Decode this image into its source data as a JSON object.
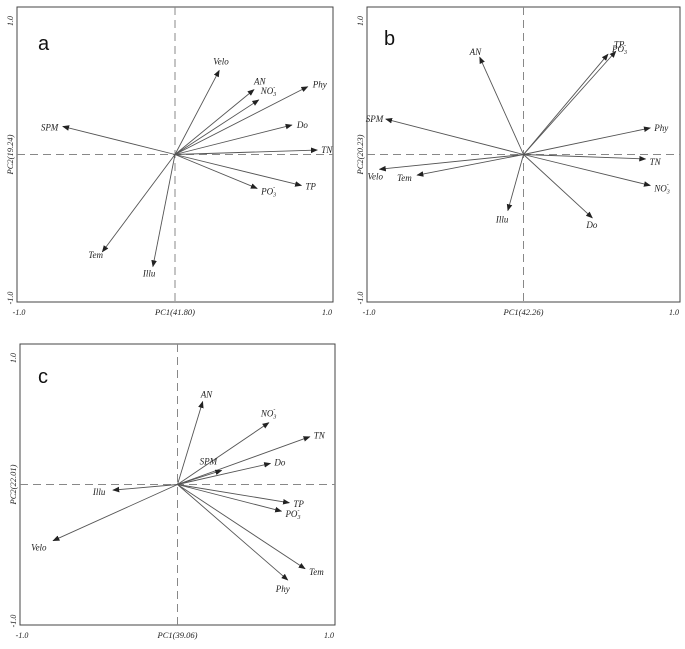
{
  "chart_data": [
    {
      "type": "biplot",
      "panel": "a",
      "xlabel": "PC1(41.80)",
      "ylabel": "PC2(19.24)",
      "xlim": [
        -1.0,
        1.0
      ],
      "ylim": [
        -1.0,
        1.0
      ],
      "x_ticks": [
        "-1.0",
        "1.0"
      ],
      "y_ticks": [
        "1.0",
        "-1.0"
      ],
      "vectors": [
        {
          "label": "Velo",
          "x": 0.28,
          "y": 0.57
        },
        {
          "label": "AN",
          "x": 0.5,
          "y": 0.44
        },
        {
          "label": "NO",
          "sub": "3",
          "sup": "-",
          "x": 0.53,
          "y": 0.37
        },
        {
          "label": "Phy",
          "x": 0.84,
          "y": 0.46
        },
        {
          "label": "Do",
          "x": 0.74,
          "y": 0.2
        },
        {
          "label": "TN",
          "x": 0.9,
          "y": 0.03
        },
        {
          "label": "TP",
          "x": 0.8,
          "y": -0.21
        },
        {
          "label": "PO",
          "sub": "3",
          "sup": "-",
          "x": 0.52,
          "y": -0.23
        },
        {
          "label": "SPM",
          "x": -0.71,
          "y": 0.19
        },
        {
          "label": "Tem",
          "x": -0.46,
          "y": -0.66
        },
        {
          "label": "Illu",
          "x": -0.14,
          "y": -0.76
        }
      ]
    },
    {
      "type": "biplot",
      "panel": "b",
      "xlabel": "PC1(42.26)",
      "ylabel": "PC2(20.23)",
      "xlim": [
        -1.0,
        1.0
      ],
      "ylim": [
        -1.0,
        1.0
      ],
      "x_ticks": [
        "-1.0",
        "1.0"
      ],
      "y_ticks": [
        "1.0",
        "-1.0"
      ],
      "vectors": [
        {
          "label": "AN",
          "x": -0.28,
          "y": 0.66
        },
        {
          "label": "TP",
          "x": 0.59,
          "y": 0.7
        },
        {
          "label": "PO",
          "sub": "3",
          "sup": "-",
          "x": 0.54,
          "y": 0.68
        },
        {
          "label": "Phy",
          "x": 0.81,
          "y": 0.18
        },
        {
          "label": "TN",
          "x": 0.78,
          "y": -0.03
        },
        {
          "label": "NO",
          "sub": "3",
          "sup": "-",
          "x": 0.81,
          "y": -0.21
        },
        {
          "label": "Do",
          "x": 0.44,
          "y": -0.43
        },
        {
          "label": "Illu",
          "x": -0.1,
          "y": -0.38
        },
        {
          "label": "Tem",
          "x": -0.68,
          "y": -0.14
        },
        {
          "label": "Velo",
          "x": -0.92,
          "y": -0.1
        },
        {
          "label": "SPM",
          "x": -0.88,
          "y": 0.24
        }
      ]
    },
    {
      "type": "biplot",
      "panel": "c",
      "xlabel": "PC1(39.06)",
      "ylabel": "PC2(22.01)",
      "xlim": [
        -1.0,
        1.0
      ],
      "ylim": [
        -1.0,
        1.0
      ],
      "x_ticks": [
        "-1.0",
        "1.0"
      ],
      "y_ticks": [
        "1.0",
        "-1.0"
      ],
      "vectors": [
        {
          "label": "AN",
          "x": 0.16,
          "y": 0.59
        },
        {
          "label": "NO",
          "sub": "3",
          "sup": "-",
          "x": 0.58,
          "y": 0.44
        },
        {
          "label": "TN",
          "x": 0.84,
          "y": 0.34
        },
        {
          "label": "SPM",
          "x": 0.28,
          "y": 0.1
        },
        {
          "label": "Do",
          "x": 0.59,
          "y": 0.15
        },
        {
          "label": "TP",
          "x": 0.71,
          "y": -0.13
        },
        {
          "label": "PO",
          "sub": "3",
          "sup": "-",
          "x": 0.66,
          "y": -0.19
        },
        {
          "label": "Tem",
          "x": 0.81,
          "y": -0.6
        },
        {
          "label": "Phy",
          "x": 0.7,
          "y": -0.68
        },
        {
          "label": "Illu",
          "x": -0.41,
          "y": -0.04
        },
        {
          "label": "Velo",
          "x": -0.79,
          "y": -0.4
        }
      ]
    }
  ]
}
